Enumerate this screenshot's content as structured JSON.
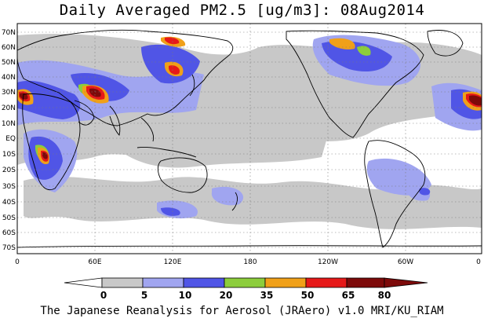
{
  "title": "Daily Averaged PM2.5 [ug/m3]: 08Aug2014",
  "caption": "The Japanese Reanalysis for Aerosol (JRAero) v1.0 MRI/KU_RIAM",
  "lat_labels": [
    "70N",
    "60N",
    "50N",
    "40N",
    "30N",
    "20N",
    "10N",
    "EQ",
    "10S",
    "20S",
    "30S",
    "40S",
    "50S",
    "60S",
    "70S"
  ],
  "lon_labels": [
    "0",
    "60E",
    "120E",
    "180",
    "120W",
    "60W",
    "0"
  ],
  "colorbar": {
    "levels": [
      "0",
      "5",
      "10",
      "20",
      "35",
      "50",
      "65",
      "80"
    ],
    "colors": [
      "#ffffff",
      "#c8c8c8",
      "#a0a5f0",
      "#5055e6",
      "#8ccd3c",
      "#f0a019",
      "#e61919",
      "#7d0a0a"
    ]
  },
  "map": {
    "land_color": "#ffffff",
    "coast_color": "#000000",
    "grid": "dotted"
  }
}
